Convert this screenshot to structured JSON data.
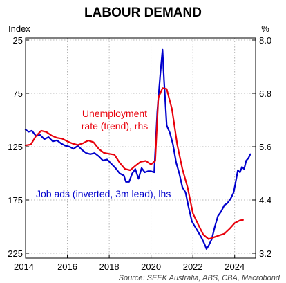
{
  "chart_data": {
    "type": "line",
    "title": "LABOUR DEMAND",
    "left_axis": {
      "unit": "Index",
      "ticks": [
        25,
        75,
        125,
        175,
        225
      ],
      "range": [
        25,
        225
      ],
      "inverted": true
    },
    "right_axis": {
      "unit": "%",
      "ticks": [
        "8.0",
        "6.8",
        "5.6",
        "4.4",
        "3.2"
      ],
      "range": [
        3.2,
        8.0
      ]
    },
    "x_axis": {
      "ticks": [
        "2014",
        "2016",
        "2018",
        "2020",
        "2022",
        "2024"
      ],
      "range": [
        2014,
        2025
      ]
    },
    "grid": true,
    "source": "Source: SEEK Australia, ABS, CBA, Macrobond",
    "series": [
      {
        "name": "Unemployment rate (trend), rhs",
        "label_lines": [
          "Unemployment",
          "rate (trend), rhs"
        ],
        "color": "#e8000b",
        "axis": "right",
        "points": [
          [
            2014.0,
            5.63
          ],
          [
            2014.25,
            5.65
          ],
          [
            2014.5,
            5.84
          ],
          [
            2014.75,
            5.96
          ],
          [
            2015.0,
            5.93
          ],
          [
            2015.25,
            5.85
          ],
          [
            2015.5,
            5.8
          ],
          [
            2015.75,
            5.78
          ],
          [
            2016.0,
            5.72
          ],
          [
            2016.25,
            5.67
          ],
          [
            2016.5,
            5.64
          ],
          [
            2016.75,
            5.68
          ],
          [
            2017.0,
            5.74
          ],
          [
            2017.25,
            5.7
          ],
          [
            2017.5,
            5.55
          ],
          [
            2017.75,
            5.46
          ],
          [
            2018.0,
            5.44
          ],
          [
            2018.25,
            5.42
          ],
          [
            2018.5,
            5.24
          ],
          [
            2018.75,
            5.1
          ],
          [
            2019.0,
            5.07
          ],
          [
            2019.25,
            5.17
          ],
          [
            2019.5,
            5.26
          ],
          [
            2019.75,
            5.28
          ],
          [
            2020.0,
            5.2
          ],
          [
            2020.2,
            5.28
          ],
          [
            2020.35,
            6.7
          ],
          [
            2020.55,
            6.92
          ],
          [
            2020.75,
            6.9
          ],
          [
            2021.0,
            6.45
          ],
          [
            2021.25,
            5.65
          ],
          [
            2021.5,
            5.1
          ],
          [
            2021.75,
            4.68
          ],
          [
            2022.0,
            4.1
          ],
          [
            2022.25,
            3.85
          ],
          [
            2022.5,
            3.62
          ],
          [
            2022.75,
            3.52
          ],
          [
            2023.0,
            3.56
          ],
          [
            2023.25,
            3.6
          ],
          [
            2023.5,
            3.64
          ],
          [
            2023.75,
            3.75
          ],
          [
            2024.0,
            3.88
          ],
          [
            2024.25,
            3.94
          ],
          [
            2024.4,
            3.95
          ]
        ]
      },
      {
        "name": "Job ads (inverted, 3m lead), lhs",
        "label_lines": [
          "Job ads (inverted, 3m lead), lhs"
        ],
        "color": "#0000cc",
        "axis": "left",
        "points": [
          [
            2014.0,
            109
          ],
          [
            2014.15,
            111
          ],
          [
            2014.3,
            110
          ],
          [
            2014.5,
            115
          ],
          [
            2014.7,
            114
          ],
          [
            2014.9,
            118
          ],
          [
            2015.1,
            116
          ],
          [
            2015.3,
            120
          ],
          [
            2015.5,
            119
          ],
          [
            2015.7,
            122
          ],
          [
            2015.9,
            124
          ],
          [
            2016.1,
            125
          ],
          [
            2016.3,
            127
          ],
          [
            2016.5,
            124
          ],
          [
            2016.7,
            128
          ],
          [
            2016.9,
            131
          ],
          [
            2017.1,
            132
          ],
          [
            2017.3,
            131
          ],
          [
            2017.5,
            134
          ],
          [
            2017.7,
            138
          ],
          [
            2017.9,
            137
          ],
          [
            2018.1,
            141
          ],
          [
            2018.3,
            145
          ],
          [
            2018.5,
            150
          ],
          [
            2018.7,
            152
          ],
          [
            2018.8,
            158
          ],
          [
            2018.95,
            158
          ],
          [
            2019.1,
            150
          ],
          [
            2019.25,
            146
          ],
          [
            2019.4,
            155
          ],
          [
            2019.55,
            145
          ],
          [
            2019.7,
            149
          ],
          [
            2019.85,
            148
          ],
          [
            2020.0,
            148
          ],
          [
            2020.15,
            149
          ],
          [
            2020.3,
            92
          ],
          [
            2020.45,
            55
          ],
          [
            2020.55,
            34
          ],
          [
            2020.62,
            62
          ],
          [
            2020.75,
            105
          ],
          [
            2020.9,
            112
          ],
          [
            2021.05,
            123
          ],
          [
            2021.2,
            140
          ],
          [
            2021.35,
            150
          ],
          [
            2021.5,
            163
          ],
          [
            2021.65,
            168
          ],
          [
            2021.8,
            182
          ],
          [
            2021.95,
            195
          ],
          [
            2022.1,
            200
          ],
          [
            2022.25,
            205
          ],
          [
            2022.4,
            210
          ],
          [
            2022.55,
            216
          ],
          [
            2022.65,
            221
          ],
          [
            2022.75,
            218
          ],
          [
            2022.9,
            212
          ],
          [
            2023.05,
            200
          ],
          [
            2023.2,
            190
          ],
          [
            2023.35,
            186
          ],
          [
            2023.5,
            180
          ],
          [
            2023.65,
            178
          ],
          [
            2023.8,
            174
          ],
          [
            2023.95,
            168
          ],
          [
            2024.05,
            158
          ],
          [
            2024.15,
            147
          ],
          [
            2024.25,
            149
          ],
          [
            2024.35,
            144
          ],
          [
            2024.45,
            146
          ],
          [
            2024.55,
            138
          ],
          [
            2024.65,
            136
          ],
          [
            2024.75,
            132
          ]
        ]
      }
    ]
  }
}
